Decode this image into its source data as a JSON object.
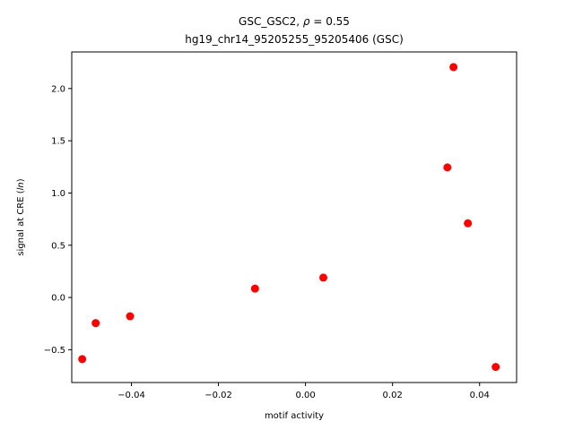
{
  "chart_data": {
    "type": "scatter",
    "title_line1_prefix": "GSC_GSC2, ",
    "title_rho_symbol": "ρ",
    "title_rho_value": " = 0.55",
    "title_line2": "hg19_chr14_95205255_95205406 (GSC)",
    "xlabel": "motif activity",
    "ylabel_prefix": "signal at CRE (",
    "ylabel_italic": "ln",
    "ylabel_suffix": ")",
    "xlim": [
      -0.0537,
      0.0485
    ],
    "ylim": [
      -0.814,
      2.35
    ],
    "xticks": [
      -0.04,
      -0.02,
      0.0,
      0.02,
      0.04
    ],
    "xtick_labels": [
      "−0.04",
      "−0.02",
      "0.00",
      "0.02",
      "0.04"
    ],
    "yticks": [
      -0.5,
      0.0,
      0.5,
      1.0,
      1.5,
      2.0
    ],
    "ytick_labels": [
      "−0.5",
      "0.0",
      "0.5",
      "1.0",
      "1.5",
      "2.0"
    ],
    "marker_color": "#ff0000",
    "points": [
      {
        "x": -0.0513,
        "y": -0.59
      },
      {
        "x": -0.0482,
        "y": -0.245
      },
      {
        "x": -0.0403,
        "y": -0.18
      },
      {
        "x": -0.0116,
        "y": 0.085
      },
      {
        "x": 0.0041,
        "y": 0.19
      },
      {
        "x": 0.0326,
        "y": 1.245
      },
      {
        "x": 0.034,
        "y": 2.205
      },
      {
        "x": 0.0373,
        "y": 0.71
      },
      {
        "x": 0.0437,
        "y": -0.665
      }
    ]
  }
}
